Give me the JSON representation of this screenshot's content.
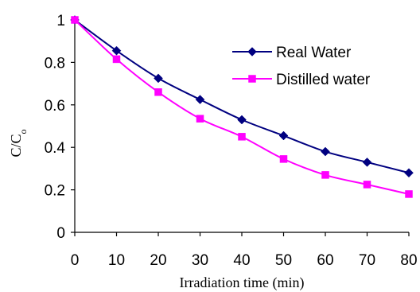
{
  "chart_data": {
    "type": "line",
    "title": "",
    "xlabel": "Irradiation time (min)",
    "ylabel": "C/C",
    "ylabel_subscript": "o",
    "xlim": [
      0,
      80
    ],
    "ylim": [
      0,
      1
    ],
    "x_ticks": [
      0,
      10,
      20,
      30,
      40,
      50,
      60,
      70,
      80
    ],
    "y_ticks": [
      0,
      0.2,
      0.4,
      0.6,
      0.8,
      1
    ],
    "grid": false,
    "legend_position": "top-right",
    "x": [
      0,
      10,
      20,
      30,
      40,
      50,
      60,
      70,
      80
    ],
    "series": [
      {
        "name": "Real Water",
        "color": "#000080",
        "marker": "diamond",
        "values": [
          1.0,
          0.855,
          0.725,
          0.625,
          0.53,
          0.455,
          0.38,
          0.33,
          0.28
        ]
      },
      {
        "name": "Distilled water",
        "color": "#ff00ff",
        "marker": "square",
        "values": [
          1.0,
          0.815,
          0.66,
          0.535,
          0.45,
          0.345,
          0.27,
          0.225,
          0.18
        ]
      }
    ]
  }
}
